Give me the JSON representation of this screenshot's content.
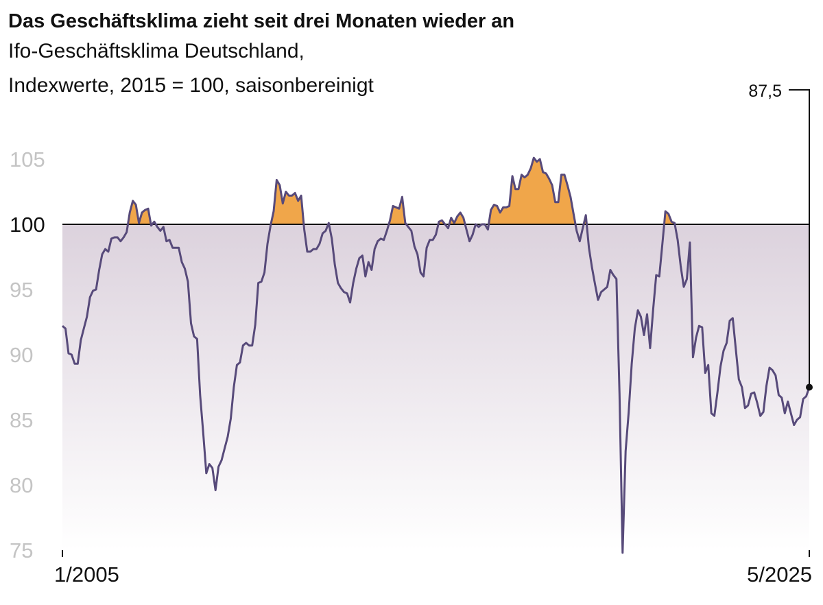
{
  "chart_data": {
    "type": "line",
    "title": "Das Geschäftsklima zieht seit drei Monaten wieder an",
    "subtitle_lines": [
      "Ifo-Geschäftsklima Deutschland,",
      "Indexwerte, 2015 = 100, saisonbereinigt"
    ],
    "xlabel": "",
    "ylabel": "",
    "x_start": "1/2005",
    "x_end": "5/2025",
    "frequency": "monthly",
    "x_tick_labels": [
      "1/2005",
      "5/2025"
    ],
    "ylim": [
      75,
      106
    ],
    "y_ticks": [
      75,
      80,
      85,
      90,
      95,
      100,
      105
    ],
    "y_tick_labels": [
      "75",
      "80",
      "85",
      "90",
      "95",
      "100",
      "105"
    ],
    "reference_line": 100,
    "grid": false,
    "last_value_label": "87,5",
    "colors": {
      "line": "#574a7a",
      "above_reference": "#f0a64a",
      "below_fill_top": "#dcd2dd",
      "below_fill_bottom": "#ffffff",
      "reference": "#111111"
    },
    "values": [
      92.2,
      92.0,
      90.1,
      90.0,
      89.3,
      89.3,
      91.1,
      92.0,
      92.9,
      94.4,
      94.9,
      95.0,
      96.5,
      97.7,
      98.1,
      97.9,
      98.9,
      99.0,
      99.0,
      98.7,
      99.0,
      99.4,
      100.9,
      101.8,
      101.5,
      100.1,
      100.9,
      101.1,
      101.2,
      99.9,
      100.2,
      99.8,
      99.5,
      99.8,
      98.7,
      98.8,
      98.2,
      98.2,
      98.2,
      97.1,
      96.6,
      95.6,
      92.4,
      91.4,
      91.2,
      86.9,
      84.0,
      80.9,
      81.6,
      81.3,
      79.6,
      81.4,
      81.9,
      82.8,
      83.7,
      85.1,
      87.5,
      89.2,
      89.4,
      90.7,
      90.9,
      90.7,
      90.7,
      92.3,
      95.5,
      95.6,
      96.3,
      98.5,
      99.9,
      101.0,
      103.4,
      103.0,
      101.6,
      102.5,
      102.2,
      102.2,
      102.4,
      101.8,
      102.2,
      99.6,
      97.9,
      97.9,
      98.1,
      98.1,
      98.5,
      99.3,
      99.5,
      100.1,
      98.9,
      96.9,
      95.5,
      95.1,
      94.8,
      94.7,
      94.0,
      95.5,
      96.6,
      97.4,
      97.6,
      96.0,
      97.1,
      96.5,
      98.1,
      98.7,
      98.9,
      98.8,
      99.5,
      100.3,
      101.4,
      101.3,
      101.2,
      102.1,
      100.1,
      99.8,
      99.5,
      98.3,
      97.7,
      96.3,
      96.0,
      98.2,
      98.8,
      98.8,
      99.2,
      100.2,
      100.3,
      100.0,
      99.7,
      100.5,
      100.1,
      100.6,
      100.9,
      100.5,
      99.6,
      98.7,
      99.2,
      100.0,
      99.8,
      100.0,
      100.0,
      99.6,
      101.1,
      101.5,
      101.4,
      100.9,
      101.3,
      101.3,
      101.4,
      103.7,
      102.7,
      102.7,
      103.8,
      103.6,
      103.8,
      104.3,
      105.1,
      104.8,
      105.0,
      104.0,
      103.9,
      103.5,
      103.0,
      101.7,
      101.7,
      103.8,
      103.8,
      103.0,
      102.1,
      100.8,
      99.5,
      98.7,
      99.7,
      100.7,
      98.2,
      96.7,
      95.4,
      94.2,
      94.8,
      95.0,
      95.2,
      96.5,
      96.1,
      95.8,
      87.0,
      74.8,
      82.6,
      85.6,
      89.3,
      92.0,
      93.4,
      92.9,
      91.5,
      93.1,
      90.5,
      93.5,
      96.1,
      96.0,
      98.5,
      101.0,
      100.8,
      100.2,
      100.1,
      98.8,
      96.8,
      95.2,
      95.8,
      98.6,
      89.8,
      91.3,
      92.2,
      92.1,
      88.6,
      89.2,
      85.5,
      85.3,
      87.1,
      89.1,
      90.3,
      90.9,
      92.6,
      92.8,
      90.4,
      88.1,
      87.5,
      85.9,
      86.1,
      87.0,
      87.1,
      86.3,
      85.3,
      85.6,
      87.6,
      89.0,
      88.8,
      88.4,
      86.9,
      86.7,
      85.5,
      86.4,
      85.5,
      84.6,
      85.0,
      85.2,
      86.6,
      86.8,
      87.5
    ]
  }
}
